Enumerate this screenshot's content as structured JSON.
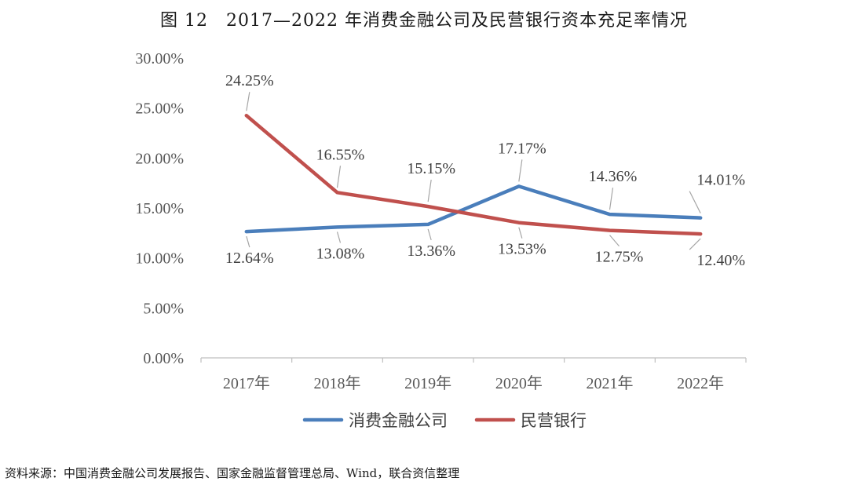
{
  "figure_title": "图 12　2017—2022 年消费金融公司及民营银行资本充足率情况",
  "source_note": "资料来源：中国消费金融公司发展报告、国家金融监督管理总局、Wind，联合资信整理",
  "chart_data": {
    "type": "line",
    "title": "图 12　2017—2022 年消费金融公司及民营银行资本充足率情况",
    "xlabel": "",
    "ylabel": "",
    "categories": [
      "2017年",
      "2018年",
      "2019年",
      "2020年",
      "2021年",
      "2022年"
    ],
    "ylim": [
      0,
      30
    ],
    "yticks": [
      "0.00%",
      "5.00%",
      "10.00%",
      "15.00%",
      "20.00%",
      "25.00%",
      "30.00%"
    ],
    "grid": false,
    "legend_position": "bottom",
    "series": [
      {
        "name": "消费金融公司",
        "color": "#4a7ebb",
        "values": [
          12.64,
          13.08,
          13.36,
          17.17,
          14.36,
          14.01
        ],
        "labels": [
          "12.64%",
          "13.08%",
          "13.36%",
          "17.17%",
          "14.36%",
          "14.01%"
        ]
      },
      {
        "name": "民营银行",
        "color": "#c0504d",
        "values": [
          24.25,
          16.55,
          15.15,
          13.53,
          12.75,
          12.4
        ],
        "labels": [
          "24.25%",
          "16.55%",
          "15.15%",
          "13.53%",
          "12.75%",
          "12.40%"
        ]
      }
    ]
  }
}
